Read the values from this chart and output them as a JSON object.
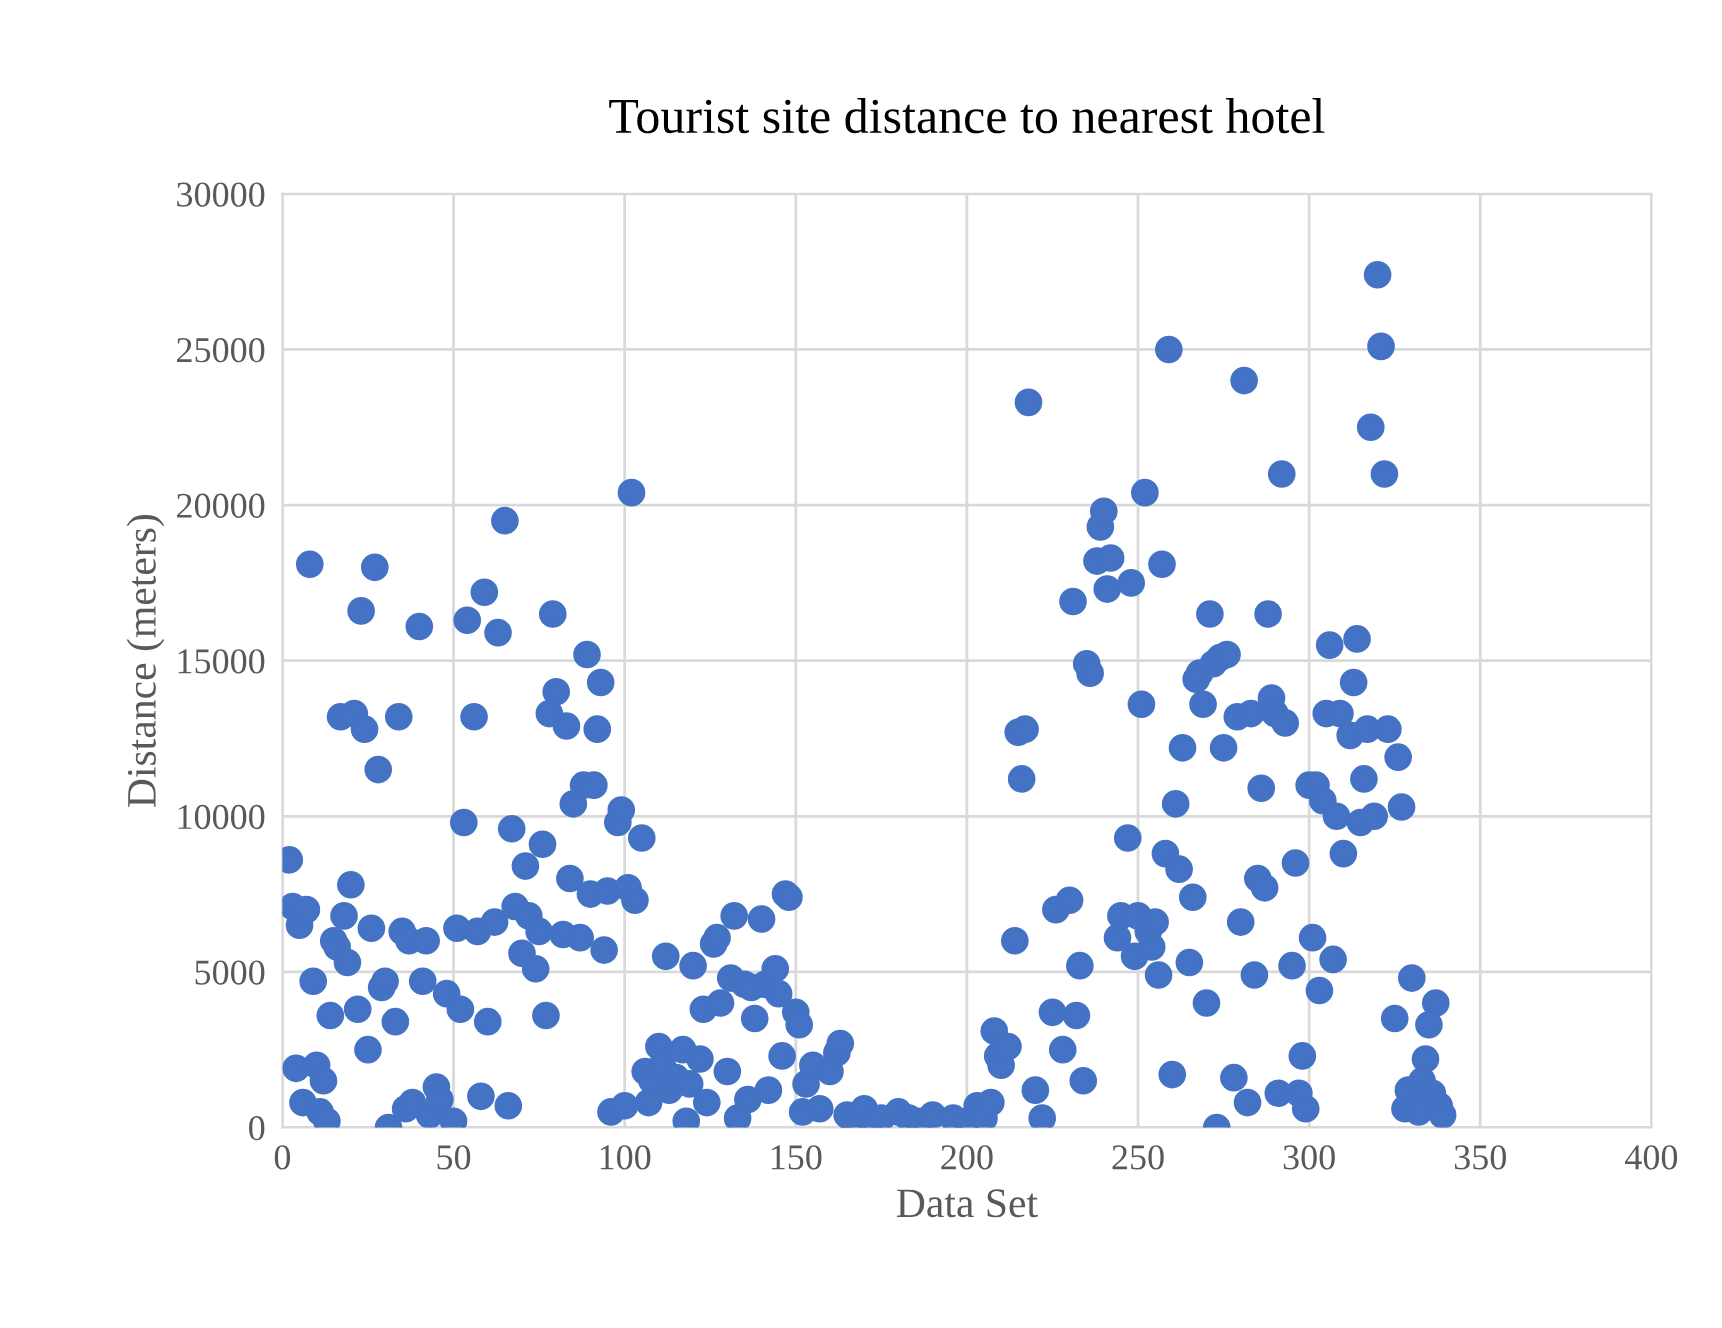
{
  "chart_data": {
    "type": "scatter",
    "title": "Tourist site distance to nearest hotel",
    "xlabel": "Data Set",
    "ylabel": "Distance (meters)",
    "xlim": [
      0,
      400
    ],
    "xticks": [
      0,
      50,
      100,
      150,
      200,
      250,
      300,
      350,
      400
    ],
    "ylim": [
      0,
      30000
    ],
    "yticks": [
      0,
      5000,
      10000,
      15000,
      20000,
      25000,
      30000
    ],
    "grid": true,
    "marker": "circle",
    "legend": false,
    "series": [
      {
        "color": "#4472c4",
        "x": [
          2,
          3,
          4,
          5,
          6,
          7,
          8,
          9,
          10,
          11,
          12,
          13,
          14,
          15,
          16,
          17,
          18,
          19,
          20,
          21,
          22,
          23,
          24,
          25,
          26,
          27,
          28,
          29,
          30,
          31,
          33,
          34,
          35,
          36,
          37,
          38,
          40,
          41,
          42,
          43,
          45,
          46,
          48,
          50,
          51,
          52,
          53,
          54,
          56,
          57,
          58,
          59,
          60,
          62,
          63,
          65,
          66,
          67,
          68,
          70,
          71,
          72,
          74,
          75,
          76,
          77,
          78,
          79,
          80,
          82,
          83,
          84,
          85,
          87,
          88,
          89,
          90,
          91,
          92,
          93,
          94,
          95,
          96,
          98,
          99,
          100,
          101,
          102,
          103,
          105,
          106,
          107,
          108,
          110,
          111,
          112,
          113,
          115,
          117,
          118,
          119,
          120,
          122,
          123,
          124,
          126,
          127,
          128,
          130,
          131,
          132,
          133,
          135,
          136,
          137,
          138,
          140,
          141,
          142,
          144,
          145,
          146,
          147,
          148,
          150,
          151,
          152,
          153,
          155,
          157,
          160,
          162,
          163,
          165,
          167,
          170,
          172,
          175,
          180,
          183,
          186,
          190,
          196,
          200,
          203,
          205,
          207,
          208,
          209,
          210,
          212,
          214,
          215,
          216,
          217,
          218,
          220,
          222,
          225,
          226,
          228,
          230,
          231,
          232,
          233,
          234,
          235,
          236,
          238,
          239,
          240,
          241,
          242,
          244,
          245,
          247,
          248,
          249,
          250,
          251,
          252,
          253,
          254,
          255,
          256,
          257,
          258,
          259,
          260,
          261,
          262,
          263,
          265,
          266,
          267,
          268,
          269,
          270,
          271,
          272,
          273,
          274,
          275,
          276,
          278,
          279,
          280,
          281,
          282,
          283,
          284,
          285,
          286,
          287,
          288,
          289,
          290,
          291,
          292,
          293,
          295,
          296,
          297,
          298,
          299,
          300,
          301,
          302,
          303,
          304,
          305,
          306,
          307,
          308,
          309,
          310,
          312,
          313,
          314,
          315,
          316,
          317,
          318,
          319,
          320,
          321,
          322,
          323,
          325,
          326,
          327,
          328,
          329,
          330,
          332,
          333,
          334,
          335,
          336,
          337,
          338,
          339
        ],
        "values": [
          8600,
          7100,
          1900,
          6500,
          800,
          7000,
          18100,
          4700,
          2000,
          500,
          1500,
          200,
          3600,
          6000,
          5800,
          13200,
          6800,
          5300,
          7800,
          13300,
          3800,
          16600,
          12800,
          2500,
          6400,
          18000,
          11500,
          4500,
          4700,
          0,
          3400,
          13200,
          6300,
          600,
          6000,
          800,
          16100,
          4700,
          6000,
          400,
          1300,
          900,
          4300,
          200,
          6400,
          3800,
          9800,
          16300,
          13200,
          6300,
          1000,
          17200,
          3400,
          6600,
          15900,
          19500,
          700,
          9600,
          7100,
          5600,
          8400,
          6800,
          5100,
          6300,
          9100,
          3600,
          13300,
          16500,
          14000,
          6200,
          12900,
          8000,
          10400,
          6100,
          11000,
          15200,
          7500,
          11000,
          12800,
          14300,
          5700,
          7600,
          500,
          9800,
          10200,
          700,
          7700,
          20400,
          7300,
          9300,
          1800,
          800,
          1500,
          2600,
          2000,
          5500,
          1200,
          1600,
          2500,
          200,
          1400,
          5200,
          2200,
          3800,
          800,
          5900,
          6100,
          4000,
          1800,
          4800,
          6800,
          300,
          4600,
          900,
          4500,
          3500,
          6700,
          4600,
          1200,
          5100,
          4300,
          2300,
          7500,
          7400,
          3700,
          3300,
          500,
          1400,
          2000,
          600,
          1800,
          2400,
          2700,
          400,
          100,
          600,
          200,
          300,
          500,
          300,
          200,
          400,
          300,
          200,
          700,
          300,
          800,
          3100,
          2300,
          2000,
          2600,
          6000,
          12700,
          11200,
          12800,
          23300,
          1200,
          300,
          3700,
          7000,
          2500,
          7300,
          16900,
          3600,
          5200,
          1500,
          14900,
          14600,
          18200,
          19300,
          19800,
          17300,
          18300,
          6100,
          6800,
          9300,
          17500,
          5500,
          6800,
          13600,
          20400,
          6300,
          5800,
          6600,
          4900,
          18100,
          8800,
          25000,
          1700,
          10400,
          8300,
          12200,
          5300,
          7400,
          14400,
          14600,
          13600,
          4000,
          16500,
          14900,
          0,
          15100,
          12200,
          15200,
          1600,
          13200,
          6600,
          24000,
          800,
          13300,
          4900,
          8000,
          10900,
          7700,
          16500,
          13800,
          13300,
          1100,
          21000,
          13000,
          5200,
          8500,
          1100,
          2300,
          600,
          11000,
          6100,
          11000,
          4400,
          10500,
          13300,
          15500,
          5400,
          10000,
          13300,
          8800,
          12600,
          14300,
          15700,
          9800,
          11200,
          12800,
          22500,
          10000,
          27400,
          25100,
          21000,
          12800,
          3500,
          11900,
          10300,
          600,
          1200,
          4800,
          500,
          1500,
          2200,
          3300,
          1100,
          4000,
          700,
          400
        ]
      }
    ]
  }
}
